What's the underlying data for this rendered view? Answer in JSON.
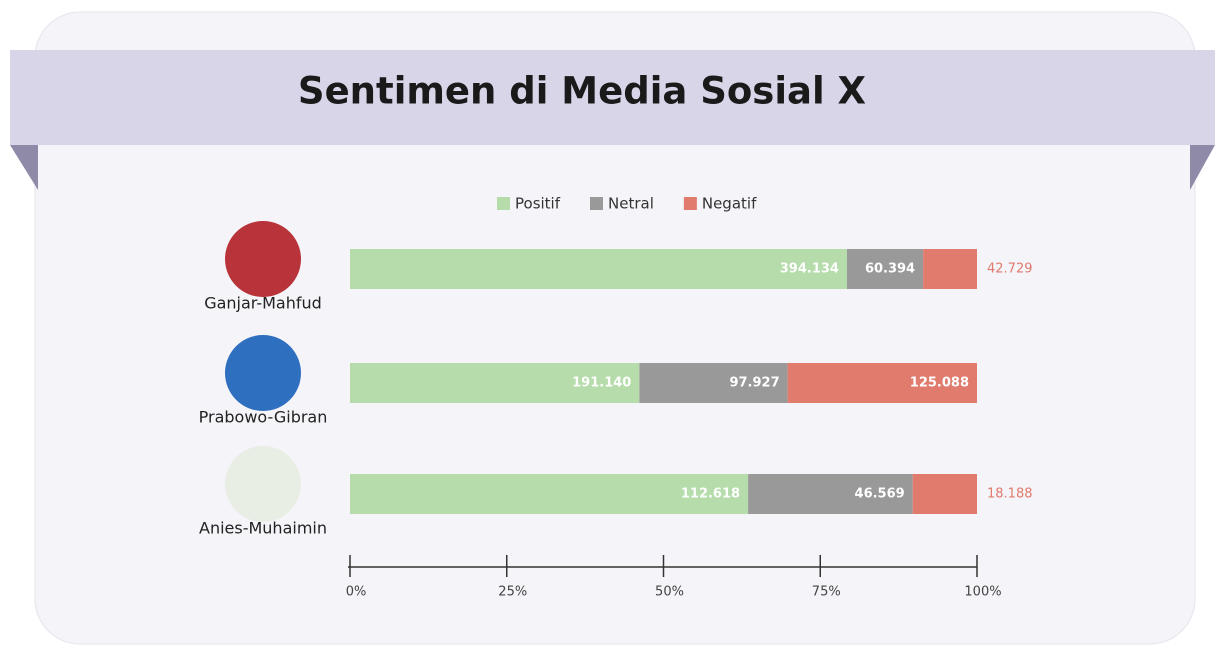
{
  "chart_data": {
    "type": "bar",
    "orientation": "horizontal",
    "stack": "percent",
    "title": "Sentimen di Media Sosial X",
    "categories": [
      "Ganjar-Mahfud",
      "Prabowo-Gibran",
      "Anies-Muhaimin"
    ],
    "series": [
      {
        "name": "Positif",
        "color": "#b5dcaa",
        "values": [
          394134,
          191140,
          112618
        ],
        "value_labels": [
          "394.134",
          "191.140",
          "112.618"
        ]
      },
      {
        "name": "Netral",
        "color": "#999999",
        "values": [
          60394,
          97927,
          46569
        ],
        "value_labels": [
          "60.394",
          "97.927",
          "46.569"
        ]
      },
      {
        "name": "Negatif",
        "color": "#e07b6e",
        "values": [
          42729,
          125088,
          18188
        ],
        "value_labels": [
          "42.729",
          "125.088",
          "18.188"
        ]
      }
    ],
    "xlim": [
      0,
      100
    ],
    "xticks": [
      {
        "value": 0,
        "label": "0%"
      },
      {
        "value": 25,
        "label": "25%"
      },
      {
        "value": 50,
        "label": "50%"
      },
      {
        "value": 75,
        "label": "75%"
      },
      {
        "value": 100,
        "label": "100%"
      }
    ],
    "legend": "top"
  }
}
